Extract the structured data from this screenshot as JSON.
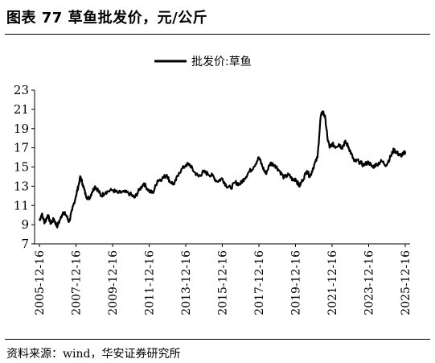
{
  "header": {
    "title": "图表 77  草鱼批发价，元/公斤"
  },
  "footer": {
    "source": "资料来源：wind，华安证券研究所"
  },
  "chart_data": {
    "type": "line",
    "title": "",
    "xlabel": "",
    "ylabel": "",
    "ylim": [
      7,
      23
    ],
    "yticks": [
      7,
      9,
      11,
      13,
      15,
      17,
      19,
      21,
      23
    ],
    "xticks": [
      "2005-12-16",
      "2007-12-16",
      "2009-12-16",
      "2011-12-16",
      "2013-12-16",
      "2015-12-16",
      "2017-12-16",
      "2019-12-16",
      "2021-12-16",
      "2023-12-16",
      "2025-12-16"
    ],
    "grid": false,
    "legend_position": "top-center",
    "series": [
      {
        "name": "批发价:草鱼",
        "color": "#000000",
        "points": [
          [
            "2005-12-16",
            9.4
          ],
          [
            "2006-02-01",
            10.1
          ],
          [
            "2006-04-01",
            9.2
          ],
          [
            "2006-06-01",
            10.0
          ],
          [
            "2006-08-01",
            9.1
          ],
          [
            "2006-10-01",
            9.6
          ],
          [
            "2006-12-01",
            8.8
          ],
          [
            "2007-02-01",
            9.5
          ],
          [
            "2007-04-01",
            10.3
          ],
          [
            "2007-06-01",
            10.0
          ],
          [
            "2007-08-01",
            9.3
          ],
          [
            "2007-10-01",
            10.5
          ],
          [
            "2007-12-16",
            12.0
          ],
          [
            "2008-02-01",
            13.0
          ],
          [
            "2008-03-15",
            14.0
          ],
          [
            "2008-05-01",
            13.2
          ],
          [
            "2008-07-01",
            12.0
          ],
          [
            "2008-09-01",
            11.7
          ],
          [
            "2008-11-01",
            12.4
          ],
          [
            "2009-01-01",
            13.0
          ],
          [
            "2009-03-01",
            12.6
          ],
          [
            "2009-05-01",
            12.0
          ],
          [
            "2009-08-01",
            12.4
          ],
          [
            "2009-12-16",
            12.6
          ],
          [
            "2010-04-01",
            12.3
          ],
          [
            "2010-08-01",
            12.4
          ],
          [
            "2010-12-01",
            12.2
          ],
          [
            "2011-03-01",
            11.8
          ],
          [
            "2011-06-01",
            12.6
          ],
          [
            "2011-09-01",
            13.3
          ],
          [
            "2011-12-16",
            12.5
          ],
          [
            "2012-03-01",
            12.3
          ],
          [
            "2012-06-01",
            13.6
          ],
          [
            "2012-09-01",
            13.8
          ],
          [
            "2012-12-01",
            14.2
          ],
          [
            "2013-02-01",
            13.5
          ],
          [
            "2013-05-01",
            13.2
          ],
          [
            "2013-08-01",
            14.4
          ],
          [
            "2013-12-16",
            15.2
          ],
          [
            "2014-03-01",
            15.3
          ],
          [
            "2014-06-01",
            14.5
          ],
          [
            "2014-09-01",
            14.0
          ],
          [
            "2014-12-01",
            14.5
          ],
          [
            "2015-03-01",
            14.3
          ],
          [
            "2015-06-01",
            14.1
          ],
          [
            "2015-09-01",
            13.5
          ],
          [
            "2015-12-16",
            13.8
          ],
          [
            "2016-03-01",
            13.1
          ],
          [
            "2016-06-01",
            12.8
          ],
          [
            "2016-09-01",
            13.4
          ],
          [
            "2016-12-01",
            13.2
          ],
          [
            "2017-03-01",
            13.8
          ],
          [
            "2017-06-01",
            14.5
          ],
          [
            "2017-09-01",
            15.0
          ],
          [
            "2017-12-16",
            16.0
          ],
          [
            "2018-03-01",
            15.0
          ],
          [
            "2018-05-01",
            14.3
          ],
          [
            "2018-08-01",
            15.4
          ],
          [
            "2018-11-01",
            15.2
          ],
          [
            "2019-02-01",
            14.6
          ],
          [
            "2019-05-01",
            13.9
          ],
          [
            "2019-08-01",
            14.2
          ],
          [
            "2019-11-01",
            13.6
          ],
          [
            "2019-12-16",
            13.8
          ],
          [
            "2020-03-01",
            13.0
          ],
          [
            "2020-05-01",
            13.6
          ],
          [
            "2020-08-01",
            14.6
          ],
          [
            "2020-10-01",
            14.0
          ],
          [
            "2020-12-01",
            14.9
          ],
          [
            "2021-03-01",
            16.0
          ],
          [
            "2021-05-01",
            20.2
          ],
          [
            "2021-06-15",
            20.8
          ],
          [
            "2021-08-01",
            20.1
          ],
          [
            "2021-09-15",
            18.0
          ],
          [
            "2021-11-01",
            17.0
          ],
          [
            "2021-12-16",
            17.4
          ],
          [
            "2022-03-01",
            17.1
          ],
          [
            "2022-05-01",
            17.4
          ],
          [
            "2022-07-01",
            17.0
          ],
          [
            "2022-09-01",
            17.6
          ],
          [
            "2022-11-01",
            17.2
          ],
          [
            "2023-01-01",
            16.4
          ],
          [
            "2023-03-01",
            15.6
          ],
          [
            "2023-06-01",
            15.6
          ],
          [
            "2023-09-01",
            15.2
          ],
          [
            "2023-12-16",
            15.5
          ],
          [
            "2024-03-01",
            15.0
          ],
          [
            "2024-06-01",
            15.3
          ],
          [
            "2024-09-01",
            15.6
          ],
          [
            "2024-12-01",
            15.2
          ],
          [
            "2025-03-01",
            16.1
          ],
          [
            "2025-05-01",
            16.8
          ],
          [
            "2025-07-01",
            16.5
          ],
          [
            "2025-09-01",
            16.2
          ],
          [
            "2025-11-01",
            16.3
          ],
          [
            "2025-12-16",
            16.6
          ]
        ]
      }
    ]
  }
}
